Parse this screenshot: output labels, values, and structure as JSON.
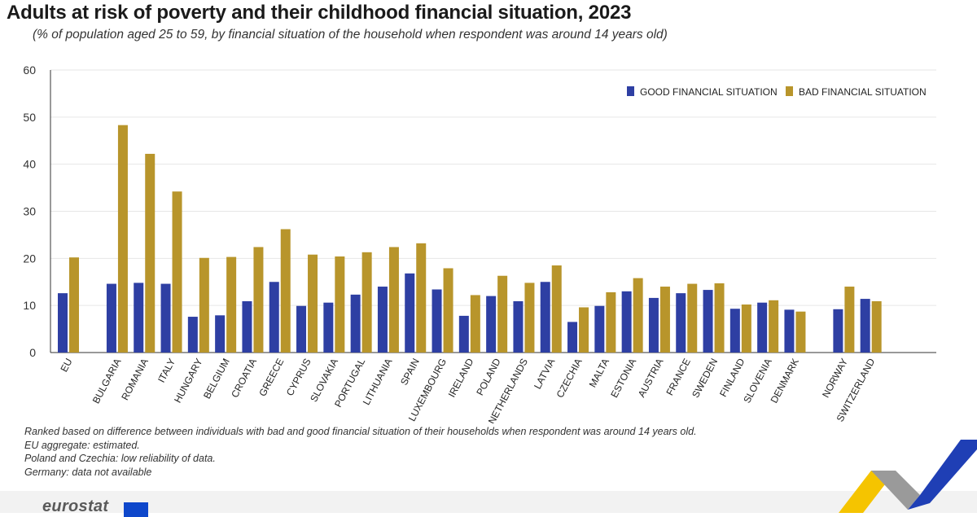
{
  "chart_data": {
    "type": "bar",
    "title": "Adults at risk of poverty and their childhood financial situation, 2023",
    "subtitle": "(% of population aged 25 to 59, by financial situation of the household when respondent was around 14 years old)",
    "xlabel": "",
    "ylabel": "",
    "ylim": [
      0,
      60
    ],
    "yticks": [
      0,
      10,
      20,
      30,
      40,
      50,
      60
    ],
    "grid": true,
    "legend_position": "top-right",
    "categories": [
      "EU",
      "BULGARIA",
      "ROMANIA",
      "ITALY",
      "HUNGARY",
      "BELGIUM",
      "CROATIA",
      "GREECE",
      "CYPRUS",
      "SLOVAKIA",
      "PORTUGAL",
      "LITHUANIA",
      "SPAIN",
      "LUXEMBOURG",
      "IRELAND",
      "POLAND",
      "NETHERLANDS",
      "LATVIA",
      "CZECHIA",
      "MALTA",
      "ESTONIA",
      "AUSTRIA",
      "FRANCE",
      "SWEDEN",
      "FINLAND",
      "SLOVENIA",
      "DENMARK",
      "NORWAY",
      "SWITZERLAND"
    ],
    "groups": [
      1,
      26,
      2
    ],
    "series": [
      {
        "name": "GOOD FINANCIAL SITUATION",
        "color": "#2e3fa3",
        "values": [
          12.6,
          14.6,
          14.8,
          14.6,
          7.6,
          7.9,
          10.9,
          15.0,
          9.9,
          10.6,
          12.3,
          14.0,
          16.8,
          13.4,
          7.8,
          12.0,
          10.9,
          15.0,
          6.5,
          9.9,
          13.0,
          11.6,
          12.6,
          13.3,
          9.3,
          10.6,
          9.1,
          9.2,
          11.4
        ]
      },
      {
        "name": "BAD FINANCIAL SITUATION",
        "color": "#b8952b",
        "values": [
          20.2,
          48.3,
          42.2,
          34.2,
          20.1,
          20.3,
          22.4,
          26.2,
          20.8,
          20.4,
          21.3,
          22.4,
          23.2,
          17.9,
          12.2,
          16.3,
          14.8,
          18.5,
          9.6,
          12.8,
          15.8,
          14.0,
          14.6,
          14.7,
          10.2,
          11.1,
          8.7,
          14.0,
          10.9
        ]
      }
    ]
  },
  "notes": [
    "Ranked based on difference between individuals with bad and good financial situation of their households when respondent was around 14 years old.",
    "EU aggregate: estimated.",
    "Poland and Czechia: low reliability of data.",
    "Germany: data not available"
  ],
  "brand": "eurostat",
  "colors": {
    "good": "#2e3fa3",
    "bad": "#b8952b",
    "grid": "#e6e6e6",
    "axis": "#333333"
  }
}
